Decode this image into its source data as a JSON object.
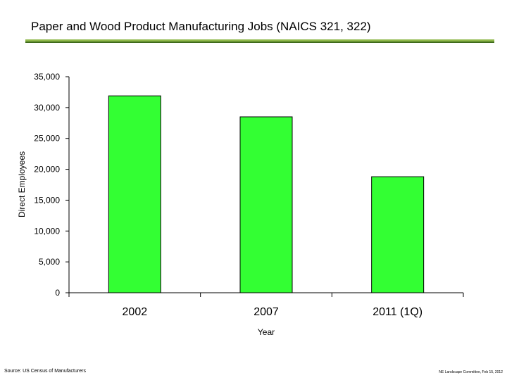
{
  "slide": {
    "title": "Paper and Wood Product Manufacturing Jobs (NAICS 321, 322)",
    "source": "Source: US Census of Manufacturers",
    "footer": "NE Landscape Committee, Feb 15, 2012"
  },
  "colors": {
    "bar_fill": "#33ff33",
    "title_rule": "#8fb84a",
    "title_rule_shadow": "#3f6b1c"
  },
  "chart_data": {
    "type": "bar",
    "categories": [
      "2002",
      "2007",
      "2011 (1Q)"
    ],
    "values": [
      31900,
      28500,
      18800
    ],
    "xlabel": "Year",
    "ylabel": "Direct Employees",
    "ylim": [
      0,
      35000
    ],
    "yticks": [
      0,
      5000,
      10000,
      15000,
      20000,
      25000,
      30000,
      35000
    ],
    "ytick_labels": [
      "0",
      "5,000",
      "10,000",
      "15,000",
      "20,000",
      "25,000",
      "30,000",
      "35,000"
    ],
    "grid": false,
    "legend": "none"
  }
}
